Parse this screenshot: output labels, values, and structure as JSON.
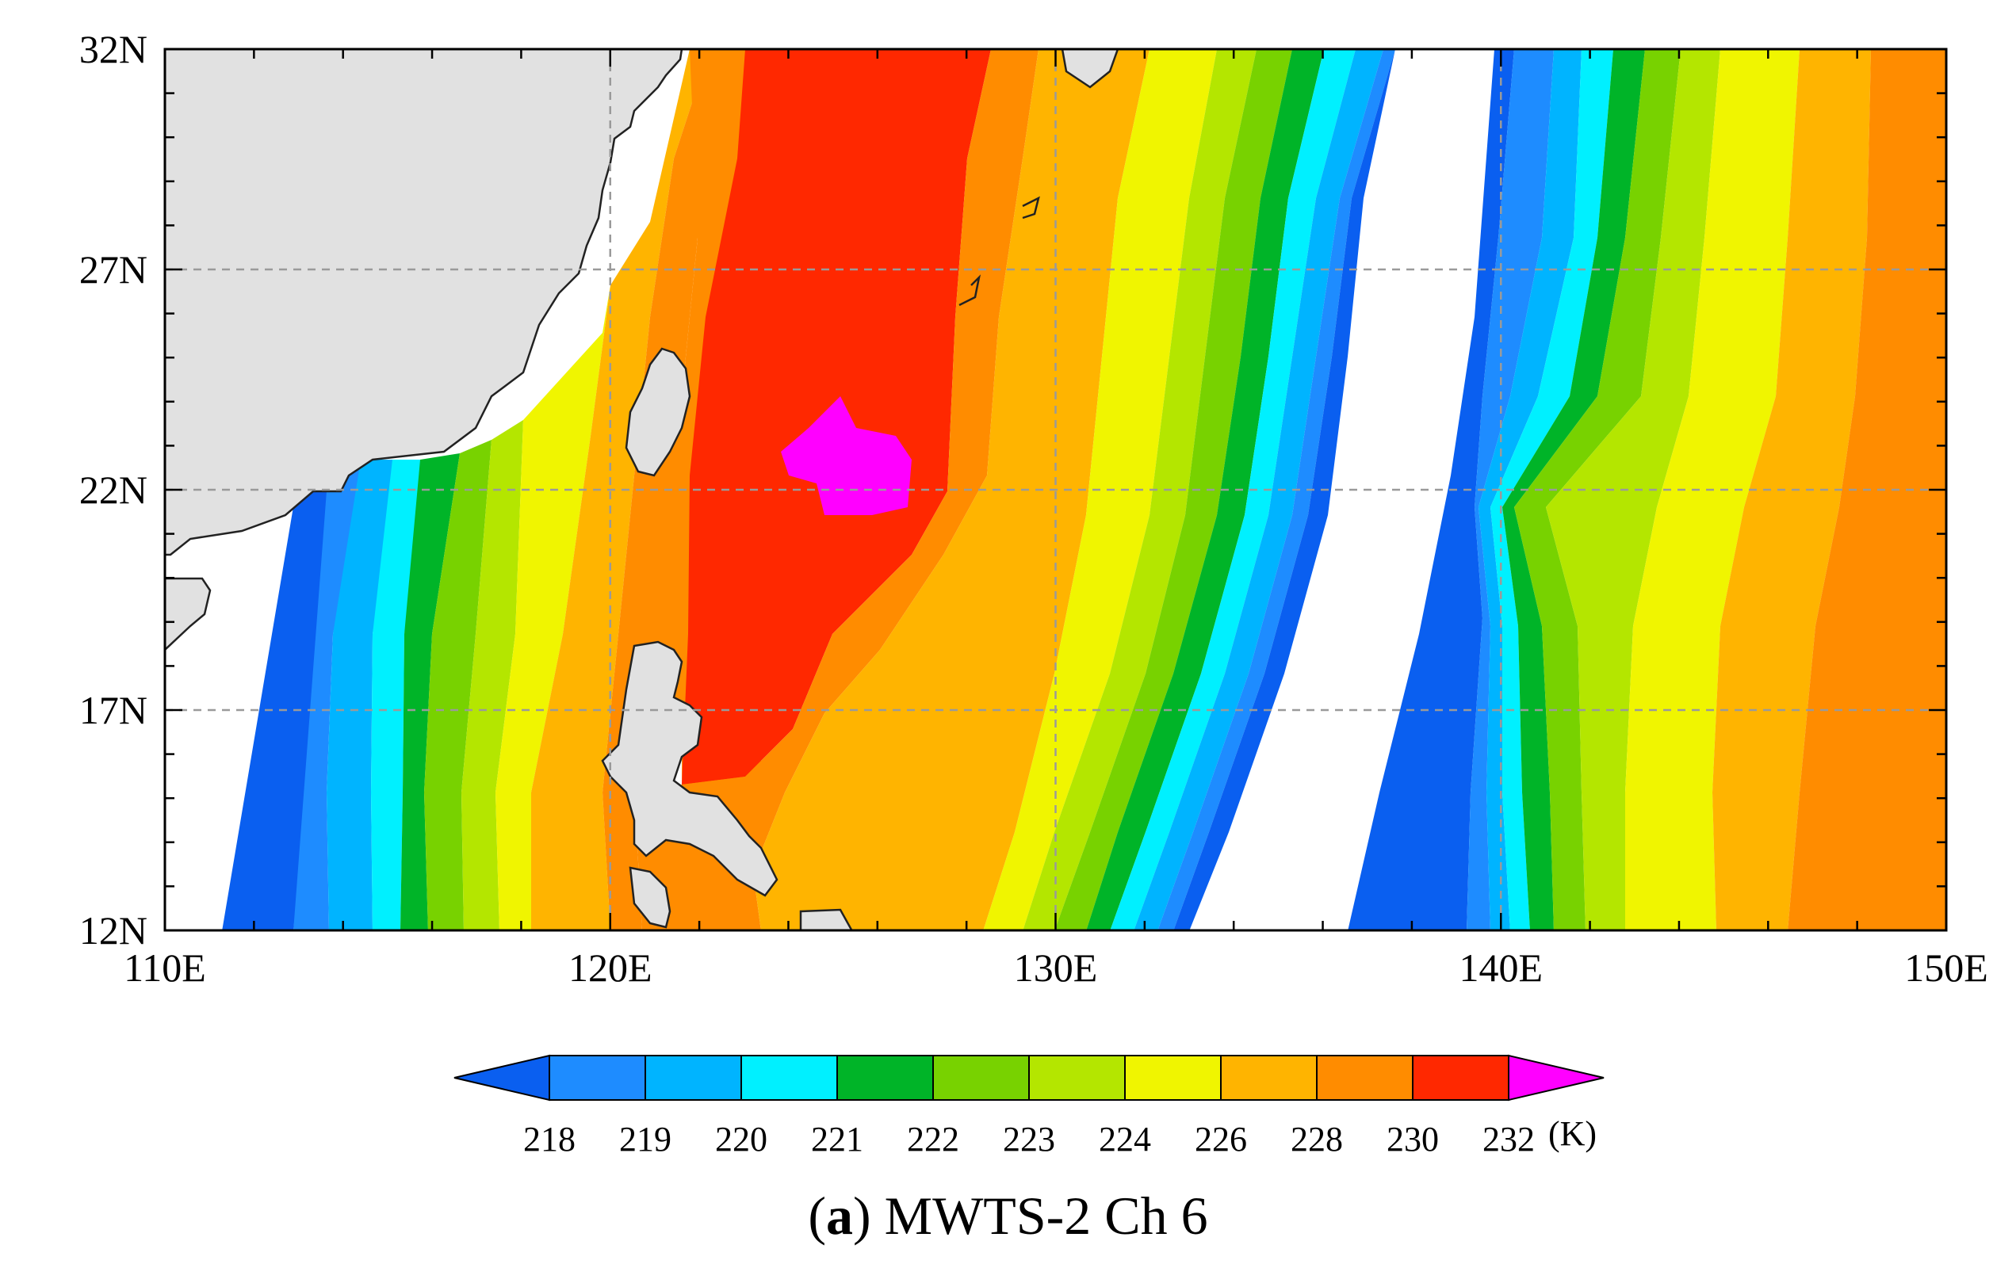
{
  "map": {
    "lon_ticks": [
      "110E",
      "120E",
      "130E",
      "140E",
      "150E"
    ],
    "lat_ticks": [
      "12N",
      "17N",
      "22N",
      "27N",
      "32N"
    ],
    "lon_range": [
      110,
      150
    ],
    "lat_range": [
      12,
      32
    ],
    "grid": true,
    "land_color": "#e1e1e1"
  },
  "colorbar": {
    "levels": [
      "218",
      "219",
      "220",
      "221",
      "222",
      "223",
      "224",
      "226",
      "228",
      "230",
      "232"
    ],
    "colors": [
      "#0a5ff0",
      "#1e8cff",
      "#00b4ff",
      "#00f0ff",
      "#00b428",
      "#78d200",
      "#b4e600",
      "#f0f500",
      "#ffb400",
      "#ff8c00",
      "#ff2800",
      "#ff00ff"
    ],
    "unit": "(K)"
  },
  "caption": {
    "letter": "a",
    "text": "MWTS-2 Ch 6"
  }
}
